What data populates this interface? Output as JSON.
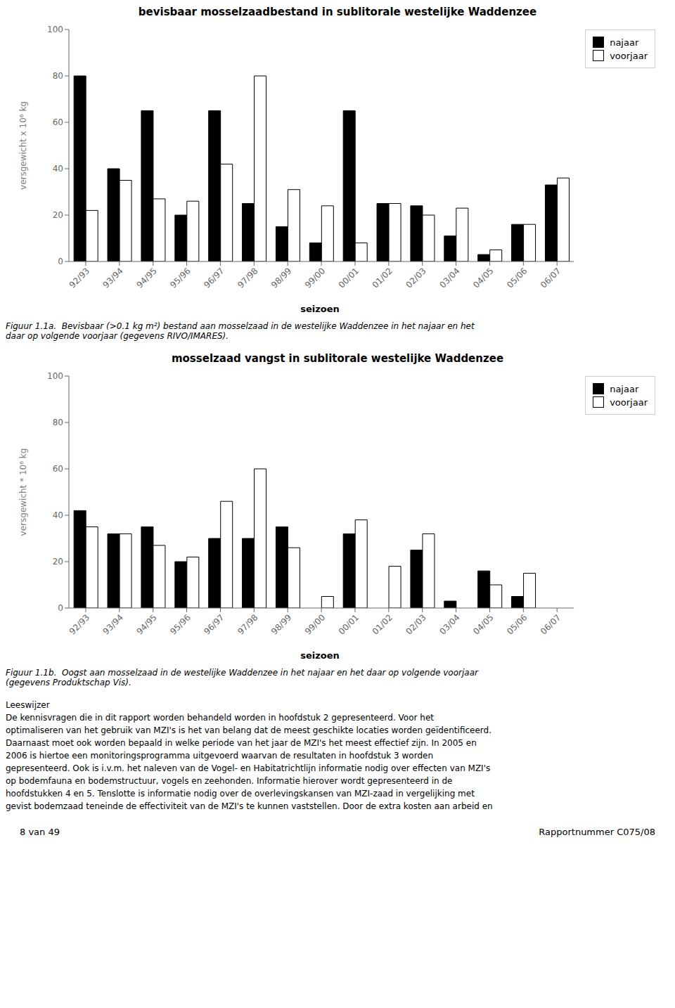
{
  "chart_data": [
    {
      "type": "bar",
      "title": "bevisbaar mosselzaadbestand in sublitorale westelijke Waddenzee",
      "xlabel": "seizoen",
      "ylabel": "versgewicht x 10⁶ kg",
      "categories": [
        "92/93",
        "93/94",
        "94/95",
        "95/96",
        "96/97",
        "97/98",
        "98/99",
        "99/00",
        "00/01",
        "01/02",
        "02/03",
        "03/04",
        "04/05",
        "05/06",
        "06/07"
      ],
      "series": [
        {
          "name": "najaar",
          "color": "#000000",
          "values": [
            80,
            40,
            65,
            20,
            65,
            25,
            15,
            8,
            65,
            25,
            24,
            11,
            3,
            16,
            33
          ]
        },
        {
          "name": "voorjaar",
          "color": "#ffffff",
          "values": [
            22,
            35,
            27,
            26,
            42,
            80,
            31,
            24,
            8,
            25,
            20,
            23,
            5,
            16,
            36
          ]
        }
      ],
      "ylim": [
        0,
        100
      ],
      "yticks": [
        0,
        20,
        40,
        60,
        80,
        100
      ],
      "grid": false,
      "legend": "upper right",
      "annotations": [
        "Figuur 1.1a.  Bevisbaar (>0.1 kg m²) bestand aan mosselzaad in de westelijke Waddenzee in het najaar en het",
        "daar op volgende voorjaar (gegevens RIVO/IMARES)."
      ]
    },
    {
      "type": "bar",
      "title": "mosselzaad vangst in sublitorale westelijke Waddenzee",
      "xlabel": "seizoen",
      "ylabel": "versgewicht * 10⁶ kg",
      "categories": [
        "92/93",
        "93/94",
        "94/95",
        "95/96",
        "96/97",
        "97/98",
        "98/99",
        "99/00",
        "00/01",
        "01/02",
        "02/03",
        "03/04",
        "04/05",
        "05/06",
        "06/07"
      ],
      "series": [
        {
          "name": "najaar",
          "color": "#000000",
          "values": [
            42,
            32,
            35,
            20,
            30,
            30,
            35,
            0,
            32,
            0,
            25,
            3,
            16,
            5,
            0
          ]
        },
        {
          "name": "voorjaar",
          "color": "#ffffff",
          "values": [
            35,
            32,
            27,
            22,
            46,
            60,
            26,
            5,
            38,
            18,
            32,
            0,
            10,
            15,
            0
          ]
        }
      ],
      "ylim": [
        0,
        100
      ],
      "yticks": [
        0,
        20,
        40,
        60,
        80,
        100
      ],
      "grid": false,
      "legend": "upper right",
      "annotations": [
        "Figuur 1.1b.  Oogst aan mosselzaad in de westelijke Waddenzee in het najaar en het daar op volgende voorjaar",
        "(gegevens Produktschap Vis)."
      ]
    }
  ],
  "body_text": [
    "Leeswijzer",
    "De kennisvragen die in dit rapport worden behandeld worden in hoofdstuk 2 gepresenteerd. Voor het",
    "optimaliseren van het gebruik van MZI's is het van belang dat de meest geschikte locaties worden geïdentificeerd.",
    "Daarnaast moet ook worden bepaald in welke periode van het jaar de MZI's het meest effectief zijn. In 2005 en",
    "2006 is hiertoe een monitoringsprogramma uitgevoerd waarvan de resultaten in hoofdstuk 3 worden",
    "gepresenteerd. Ook is i.v.m. het naleven van de Vogel- en Habitatrichtlijn informatie nodig over effecten van MZI's",
    "op bodemfauna en bodemstructuur, vogels en zeehonden. Informatie hierover wordt gepresenteerd in de",
    "hoofdstukken 4 en 5. Tenslotte is informatie nodig over de overlevingskansen van MZI-zaad in vergelijking met",
    "gevist bodemzaad teneinde de effectiviteit van de MZI's te kunnen vaststellen. Door de extra kosten aan arbeid en"
  ],
  "footer": [
    "8 van 49",
    "Rapportnummer C075/08"
  ]
}
